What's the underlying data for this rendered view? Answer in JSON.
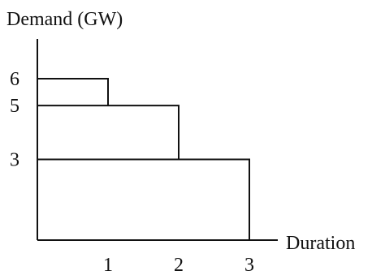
{
  "chart_data": {
    "type": "load-duration-steps",
    "ylabel": "Demand (GW)",
    "xlabel": "Duration",
    "x_ticks": [
      "1",
      "2",
      "3"
    ],
    "y_ticks": [
      "6",
      "5",
      "3"
    ],
    "xlim": [
      0,
      3
    ],
    "ylim": [
      0,
      6
    ],
    "blocks": [
      {
        "demand": 6,
        "duration": 1
      },
      {
        "demand": 5,
        "duration": 2
      },
      {
        "demand": 3,
        "duration": 3
      }
    ],
    "grid": false,
    "legend": "none"
  }
}
